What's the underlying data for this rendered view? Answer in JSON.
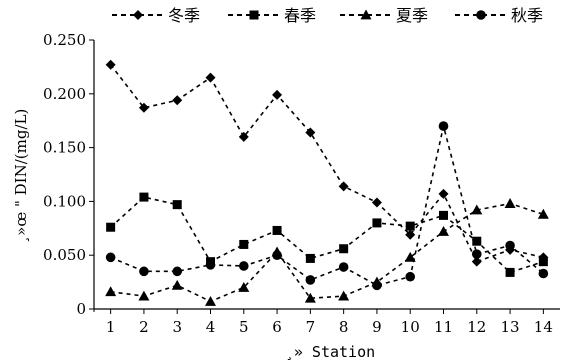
{
  "chart_data": {
    "type": "line",
    "title": "",
    "xlabel": "¸» Station",
    "ylabel": "¸»œ \" DIN/(mg/L)",
    "x": [
      1,
      2,
      3,
      4,
      5,
      6,
      7,
      8,
      9,
      10,
      11,
      12,
      13,
      14
    ],
    "xlim": [
      0.5,
      14.5
    ],
    "ylim": [
      0,
      0.25
    ],
    "yticks": [
      "0",
      "0.050",
      "0.100",
      "0.150",
      "0.200",
      "0.250"
    ],
    "grid": false,
    "legend_position": "top",
    "series": [
      {
        "name": "冬季",
        "marker": "diamond",
        "values": [
          0.227,
          0.187,
          0.194,
          0.215,
          0.16,
          0.199,
          0.164,
          0.114,
          0.099,
          0.069,
          0.107,
          0.044,
          0.055,
          0.048
        ]
      },
      {
        "name": "春季",
        "marker": "square",
        "values": [
          0.076,
          0.104,
          0.097,
          0.044,
          0.06,
          0.073,
          0.047,
          0.056,
          0.08,
          0.077,
          0.087,
          0.063,
          0.034,
          0.044
        ]
      },
      {
        "name": "夏季",
        "marker": "triangle",
        "values": [
          0.016,
          0.012,
          0.022,
          0.007,
          0.02,
          0.053,
          0.01,
          0.012,
          0.025,
          0.048,
          0.072,
          0.092,
          0.098,
          0.088
        ]
      },
      {
        "name": "秋季",
        "marker": "circle",
        "values": [
          0.048,
          0.035,
          0.035,
          0.041,
          0.04,
          0.05,
          0.027,
          0.039,
          0.022,
          0.03,
          0.17,
          0.051,
          0.059,
          0.033
        ]
      }
    ]
  }
}
